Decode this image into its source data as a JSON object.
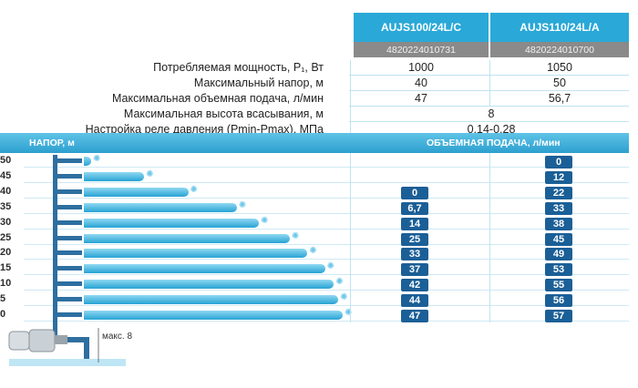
{
  "models": [
    {
      "name": "AUJS100/24L/C",
      "ean": "4820224010731"
    },
    {
      "name": "AUJS110/24L/A",
      "ean": "4820224010700"
    }
  ],
  "specs": [
    {
      "label": "Потребляемая мощность, P₁, Вт",
      "v1": "1000",
      "v2": "1050"
    },
    {
      "label": "Максимальный напор, м",
      "v1": "40",
      "v2": "50"
    },
    {
      "label": "Максимальная объемная подача, л/мин",
      "v1": "47",
      "v2": "56,7"
    },
    {
      "label": "Максимальная высота всасывания, м",
      "shared": "8"
    },
    {
      "label": "Настройка реле давления (Pmin-Pmax), МПа",
      "shared": "0,14-0,28"
    }
  ],
  "band": {
    "left": "НАПОР, м",
    "right": "ОБЪЕМНАЯ ПОДАЧА, л/мин"
  },
  "heads": [
    "50",
    "45",
    "40",
    "35",
    "30",
    "25",
    "20",
    "15",
    "10",
    "5",
    "0"
  ],
  "flow_model1": [
    "",
    "",
    "0",
    "6,7",
    "14",
    "25",
    "33",
    "37",
    "42",
    "44",
    "47"
  ],
  "flow_model2": [
    "0",
    "12",
    "22",
    "33",
    "38",
    "45",
    "49",
    "53",
    "55",
    "56",
    "57"
  ],
  "suction_label": "макс. 8",
  "colors": {
    "accent": "#2aa8d8",
    "badge": "#1b5f97",
    "ean_bg": "#8a8a8a"
  }
}
